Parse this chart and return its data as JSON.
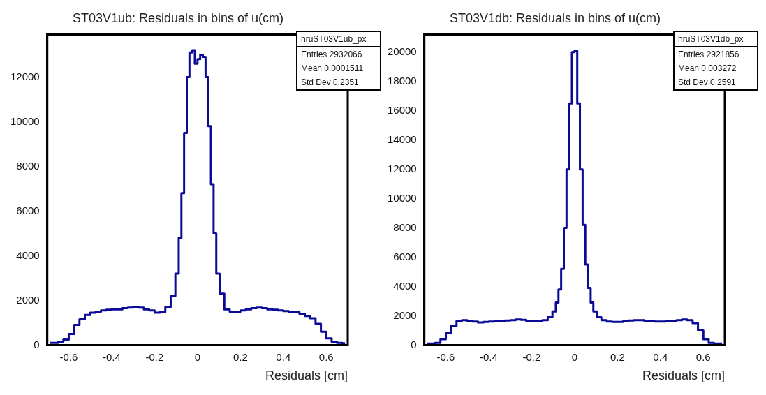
{
  "chart_data": [
    {
      "type": "step",
      "title": "ST03V1ub: Residuals in bins of u(cm)",
      "xlabel": "Residuals [cm]",
      "annotations": [
        "hruST03V1ub_px",
        "Entries 2932066",
        "Mean 0.0001511",
        "Std Dev 0.2351"
      ],
      "x": [
        -0.6875,
        -0.6625,
        -0.6375,
        -0.6125,
        -0.5875,
        -0.5625,
        -0.5375,
        -0.5125,
        -0.4875,
        -0.4625,
        -0.4375,
        -0.4125,
        -0.3875,
        -0.3625,
        -0.3375,
        -0.3125,
        -0.2875,
        -0.2625,
        -0.2375,
        -0.2125,
        -0.1875,
        -0.1625,
        -0.1375,
        -0.1125,
        -0.09375,
        -0.08125,
        -0.06875,
        -0.05625,
        -0.04375,
        -0.03125,
        -0.01875,
        -0.00625,
        0.00625,
        0.01875,
        0.03125,
        0.04375,
        0.05625,
        0.06875,
        0.08125,
        0.09375,
        0.1125,
        0.1375,
        0.1625,
        0.1875,
        0.2125,
        0.2375,
        0.2625,
        0.2875,
        0.3125,
        0.3375,
        0.3625,
        0.3875,
        0.4125,
        0.4375,
        0.4625,
        0.4875,
        0.5125,
        0.5375,
        0.5625,
        0.5875,
        0.6125,
        0.6375,
        0.6625,
        0.6875
      ],
      "values": [
        100,
        100,
        150,
        250,
        500,
        900,
        1150,
        1350,
        1450,
        1500,
        1550,
        1580,
        1600,
        1600,
        1650,
        1680,
        1700,
        1680,
        1600,
        1550,
        1450,
        1480,
        1700,
        2200,
        3200,
        4800,
        6800,
        9500,
        12000,
        13100,
        13200,
        12600,
        12800,
        13000,
        12900,
        12000,
        9800,
        7200,
        5000,
        3200,
        2300,
        1600,
        1500,
        1500,
        1550,
        1600,
        1650,
        1680,
        1650,
        1600,
        1580,
        1550,
        1520,
        1500,
        1480,
        1400,
        1300,
        1200,
        950,
        600,
        300,
        150,
        100,
        80
      ],
      "color": "#0a0a96",
      "xlim": [
        -0.7,
        0.7
      ],
      "xticks": [
        -0.6,
        -0.4,
        -0.2,
        0,
        0.2,
        0.4,
        0.6
      ],
      "ylim": [
        0,
        13900
      ],
      "yticks": [
        0,
        2000,
        4000,
        6000,
        8000,
        10000,
        12000
      ],
      "grid": false,
      "legend": false
    },
    {
      "type": "step",
      "title": "ST03V1db: Residuals in bins of u(cm)",
      "xlabel": "Residuals [cm]",
      "annotations": [
        "hruST03V1db_px",
        "Entries 2921856",
        "Mean 0.003272",
        "Std Dev 0.2591"
      ],
      "x": [
        -0.6875,
        -0.6625,
        -0.6375,
        -0.6125,
        -0.5875,
        -0.5625,
        -0.5375,
        -0.5125,
        -0.4875,
        -0.4625,
        -0.4375,
        -0.4125,
        -0.3875,
        -0.3625,
        -0.3375,
        -0.3125,
        -0.2875,
        -0.2625,
        -0.2375,
        -0.2125,
        -0.1875,
        -0.1625,
        -0.1375,
        -0.1125,
        -0.09375,
        -0.08125,
        -0.06875,
        -0.05625,
        -0.04375,
        -0.03125,
        -0.01875,
        -0.00625,
        0.00625,
        0.01875,
        0.03125,
        0.04375,
        0.05625,
        0.06875,
        0.08125,
        0.09375,
        0.1125,
        0.1375,
        0.1625,
        0.1875,
        0.2125,
        0.2375,
        0.2625,
        0.2875,
        0.3125,
        0.3375,
        0.3625,
        0.3875,
        0.4125,
        0.4375,
        0.4625,
        0.4875,
        0.5125,
        0.5375,
        0.5625,
        0.5875,
        0.6125,
        0.6375,
        0.6625,
        0.6875
      ],
      "values": [
        100,
        100,
        150,
        400,
        800,
        1300,
        1650,
        1700,
        1650,
        1600,
        1550,
        1580,
        1600,
        1620,
        1650,
        1680,
        1700,
        1750,
        1720,
        1620,
        1620,
        1650,
        1700,
        1900,
        2300,
        2900,
        3800,
        5200,
        8000,
        12000,
        16500,
        20000,
        20100,
        16500,
        12000,
        8200,
        5500,
        3900,
        2900,
        2300,
        1900,
        1700,
        1600,
        1580,
        1580,
        1620,
        1680,
        1700,
        1700,
        1650,
        1620,
        1600,
        1600,
        1620,
        1650,
        1700,
        1750,
        1700,
        1500,
        1000,
        400,
        150,
        100,
        100
      ],
      "color": "#0a0a96",
      "xlim": [
        -0.7,
        0.7
      ],
      "xticks": [
        -0.6,
        -0.4,
        -0.2,
        0,
        0.2,
        0.4,
        0.6
      ],
      "ylim": [
        0,
        21200
      ],
      "yticks": [
        0,
        2000,
        4000,
        6000,
        8000,
        10000,
        12000,
        14000,
        16000,
        18000,
        20000
      ],
      "grid": false,
      "legend": false
    }
  ]
}
